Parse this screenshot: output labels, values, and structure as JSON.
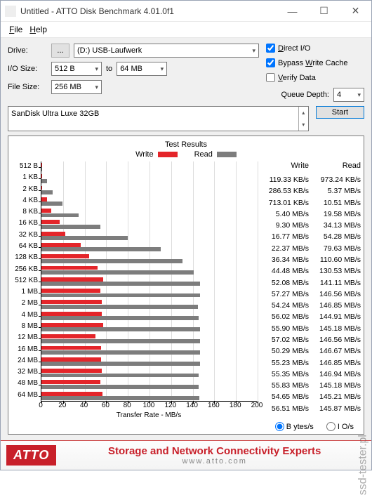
{
  "window": {
    "title": "Untitled - ATTO Disk Benchmark 4.01.0f1",
    "menus": [
      "File",
      "Help"
    ]
  },
  "form": {
    "drive_label": "Drive:",
    "drive_btn": "...",
    "drive_value": "(D:) USB-Laufwerk",
    "io_label": "I/O Size:",
    "io_from": "512 B",
    "io_to_label": "to",
    "io_to": "64 MB",
    "file_label": "File Size:",
    "file_value": "256 MB",
    "direct_io": "Direct I/O",
    "bypass": "Bypass Write Cache",
    "verify": "Verify Data",
    "queue_label": "Queue Depth:",
    "queue_value": "4",
    "start": "Start",
    "description": "SanDisk Ultra Luxe 32GB",
    "direct_io_checked": true,
    "bypass_checked": true,
    "verify_checked": false
  },
  "results": {
    "title": "Test Results",
    "legend_write": "Write",
    "legend_read": "Read",
    "xtitle": "Transfer Rate - MB/s",
    "xmax": 200,
    "xticks": [
      0,
      20,
      40,
      60,
      80,
      100,
      120,
      140,
      160,
      180,
      200
    ],
    "write_hdr": "Write",
    "read_hdr": "Read",
    "rows": [
      {
        "label": "512 B",
        "write_v": 0.119,
        "read_v": 0.973,
        "write": "119.33 KB/s",
        "read": "973.24 KB/s"
      },
      {
        "label": "1 KB",
        "write_v": 0.287,
        "read_v": 5.37,
        "write": "286.53 KB/s",
        "read": "5.37 MB/s"
      },
      {
        "label": "2 KB",
        "write_v": 0.713,
        "read_v": 10.51,
        "write": "713.01 KB/s",
        "read": "10.51 MB/s"
      },
      {
        "label": "4 KB",
        "write_v": 5.4,
        "read_v": 19.58,
        "write": "5.40 MB/s",
        "read": "19.58 MB/s"
      },
      {
        "label": "8 KB",
        "write_v": 9.3,
        "read_v": 34.13,
        "write": "9.30 MB/s",
        "read": "34.13 MB/s"
      },
      {
        "label": "16 KB",
        "write_v": 16.77,
        "read_v": 54.28,
        "write": "16.77 MB/s",
        "read": "54.28 MB/s"
      },
      {
        "label": "32 KB",
        "write_v": 22.37,
        "read_v": 79.63,
        "write": "22.37 MB/s",
        "read": "79.63 MB/s"
      },
      {
        "label": "64 KB",
        "write_v": 36.34,
        "read_v": 110.6,
        "write": "36.34 MB/s",
        "read": "110.60 MB/s"
      },
      {
        "label": "128 KB",
        "write_v": 44.48,
        "read_v": 130.53,
        "write": "44.48 MB/s",
        "read": "130.53 MB/s"
      },
      {
        "label": "256 KB",
        "write_v": 52.08,
        "read_v": 141.11,
        "write": "52.08 MB/s",
        "read": "141.11 MB/s"
      },
      {
        "label": "512 KB",
        "write_v": 57.27,
        "read_v": 146.56,
        "write": "57.27 MB/s",
        "read": "146.56 MB/s"
      },
      {
        "label": "1 MB",
        "write_v": 54.24,
        "read_v": 146.85,
        "write": "54.24 MB/s",
        "read": "146.85 MB/s"
      },
      {
        "label": "2 MB",
        "write_v": 56.02,
        "read_v": 144.91,
        "write": "56.02 MB/s",
        "read": "144.91 MB/s"
      },
      {
        "label": "4 MB",
        "write_v": 55.9,
        "read_v": 145.18,
        "write": "55.90 MB/s",
        "read": "145.18 MB/s"
      },
      {
        "label": "8 MB",
        "write_v": 57.02,
        "read_v": 146.56,
        "write": "57.02 MB/s",
        "read": "146.56 MB/s"
      },
      {
        "label": "12 MB",
        "write_v": 50.29,
        "read_v": 146.67,
        "write": "50.29 MB/s",
        "read": "146.67 MB/s"
      },
      {
        "label": "16 MB",
        "write_v": 55.23,
        "read_v": 146.85,
        "write": "55.23 MB/s",
        "read": "146.85 MB/s"
      },
      {
        "label": "24 MB",
        "write_v": 55.35,
        "read_v": 146.94,
        "write": "55.35 MB/s",
        "read": "146.94 MB/s"
      },
      {
        "label": "32 MB",
        "write_v": 55.83,
        "read_v": 145.18,
        "write": "55.83 MB/s",
        "read": "145.18 MB/s"
      },
      {
        "label": "48 MB",
        "write_v": 54.65,
        "read_v": 145.21,
        "write": "54.65 MB/s",
        "read": "145.21 MB/s"
      },
      {
        "label": "64 MB",
        "write_v": 56.51,
        "read_v": 145.87,
        "write": "56.51 MB/s",
        "read": "145.87 MB/s"
      }
    ],
    "bytes_label": "Bytes/s",
    "ios_label": "IO/s"
  },
  "footer": {
    "logo": "ATTO",
    "title": "Storage and Network Connectivity Experts",
    "url": "www.atto.com"
  },
  "watermark": "ssd-tester.pl",
  "colors": {
    "write": "#e4252a",
    "read": "#7d7d7d",
    "atto": "#c8202a"
  }
}
